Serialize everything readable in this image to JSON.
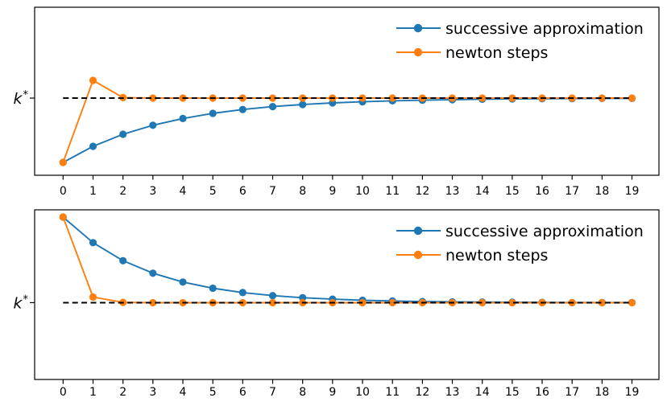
{
  "figure": {
    "background": "#ffffff",
    "axis_color": "#000000",
    "k_star_label": {
      "base": "k",
      "superscript": "*"
    },
    "legend": {
      "position": "upper right",
      "entries": [
        {
          "label": "successive approximation",
          "color": "#1f77b4"
        },
        {
          "label": "newton steps",
          "color": "#ff7f0e"
        }
      ]
    }
  },
  "chart_data": [
    {
      "type": "line",
      "title": "",
      "xlabel": "",
      "ylabel": "k*",
      "description": "Top panel: convergence to the steady state k* from an initial guess below k*",
      "x": [
        0,
        1,
        2,
        3,
        4,
        5,
        6,
        7,
        8,
        9,
        10,
        11,
        12,
        13,
        14,
        15,
        16,
        17,
        18,
        19
      ],
      "x_tick_labels": [
        "0",
        "1",
        "2",
        "3",
        "4",
        "5",
        "6",
        "7",
        "8",
        "9",
        "10",
        "11",
        "12",
        "13",
        "14",
        "15",
        "16",
        "17",
        "18",
        "19"
      ],
      "y_tick_labels": [
        "k*"
      ],
      "k_star_value": 1.0,
      "xlim": [
        -0.95,
        19.9
      ],
      "ylim": [
        0.52,
        1.565
      ],
      "grid": false,
      "legend_position": "upper right",
      "series": [
        {
          "name": "successive approximation",
          "color": "#1f77b4",
          "marker": "circle",
          "values": [
            0.6,
            0.7,
            0.775,
            0.831,
            0.873,
            0.905,
            0.929,
            0.947,
            0.96,
            0.97,
            0.977,
            0.983,
            0.987,
            0.99,
            0.993,
            0.995,
            0.996,
            0.997,
            0.998,
            0.998
          ]
        },
        {
          "name": "newton steps",
          "color": "#ff7f0e",
          "marker": "circle",
          "values": [
            0.6,
            1.11,
            1.003,
            1.0,
            1.0,
            1.0,
            1.0,
            1.0,
            1.0,
            1.0,
            1.0,
            1.0,
            1.0,
            1.0,
            1.0,
            1.0,
            1.0,
            1.0,
            1.0,
            1.0
          ]
        }
      ],
      "reference_line": {
        "value": 1.0,
        "style": "dashed",
        "color": "#000000",
        "x_start": 0,
        "x_end": 19
      }
    },
    {
      "type": "line",
      "title": "",
      "xlabel": "",
      "ylabel": "k*",
      "description": "Bottom panel: convergence to the steady state k* from an initial guess above k*",
      "x": [
        0,
        1,
        2,
        3,
        4,
        5,
        6,
        7,
        8,
        9,
        10,
        11,
        12,
        13,
        14,
        15,
        16,
        17,
        18,
        19
      ],
      "x_tick_labels": [
        "0",
        "1",
        "2",
        "3",
        "4",
        "5",
        "6",
        "7",
        "8",
        "9",
        "10",
        "11",
        "12",
        "13",
        "14",
        "15",
        "16",
        "17",
        "18",
        "19"
      ],
      "y_tick_labels": [
        "k*"
      ],
      "k_star_value": 1.0,
      "xlim": [
        -0.95,
        19.9
      ],
      "ylim": [
        0.52,
        1.58
      ],
      "grid": false,
      "legend_position": "upper right",
      "series": [
        {
          "name": "successive approximation",
          "color": "#1f77b4",
          "marker": "circle",
          "values": [
            1.535,
            1.375,
            1.262,
            1.184,
            1.129,
            1.09,
            1.063,
            1.044,
            1.031,
            1.022,
            1.015,
            1.011,
            1.007,
            1.005,
            1.004,
            1.003,
            1.002,
            1.001,
            1.001,
            1.001
          ]
        },
        {
          "name": "newton steps",
          "color": "#ff7f0e",
          "marker": "circle",
          "values": [
            1.535,
            1.035,
            1.002,
            1.0,
            1.0,
            1.0,
            1.0,
            1.0,
            1.0,
            1.0,
            1.0,
            1.0,
            1.0,
            1.0,
            1.0,
            1.0,
            1.0,
            1.0,
            1.0,
            1.0
          ]
        }
      ],
      "reference_line": {
        "value": 1.0,
        "style": "dashed",
        "color": "#000000",
        "x_start": 0,
        "x_end": 19
      }
    }
  ]
}
